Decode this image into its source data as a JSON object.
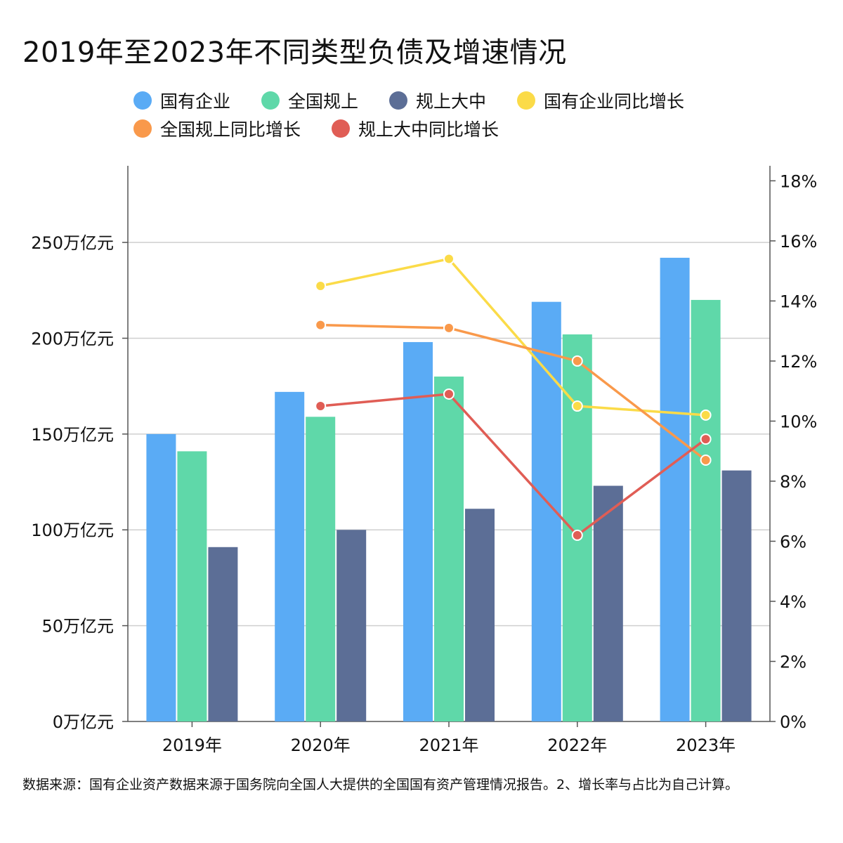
{
  "chart_data": {
    "type": "bar",
    "title": "2019年至2023年不同类型负债及增速情况",
    "categories": [
      "2019年",
      "2020年",
      "2021年",
      "2022年",
      "2023年"
    ],
    "series": [
      {
        "name": "国有企业",
        "kind": "bar",
        "axis": "left",
        "color": "#5AABF5",
        "values": [
          150,
          172,
          198,
          219,
          242
        ]
      },
      {
        "name": "全国规上",
        "kind": "bar",
        "axis": "left",
        "color": "#5FD8A9",
        "values": [
          141,
          159,
          180,
          202,
          220
        ]
      },
      {
        "name": "规上大中",
        "kind": "bar",
        "axis": "left",
        "color": "#5C6E96",
        "values": [
          91,
          100,
          111,
          123,
          131
        ]
      },
      {
        "name": "国有企业同比增长",
        "kind": "line",
        "axis": "right",
        "color": "#FBDB48",
        "values": [
          null,
          14.5,
          15.4,
          10.5,
          10.2
        ]
      },
      {
        "name": "全国规上同比增长",
        "kind": "line",
        "axis": "right",
        "color": "#F9994B",
        "values": [
          null,
          13.2,
          13.1,
          12.0,
          8.7
        ]
      },
      {
        "name": "规上大中同比增长",
        "kind": "line",
        "axis": "right",
        "color": "#E05D55",
        "values": [
          null,
          10.5,
          10.9,
          6.2,
          9.4
        ]
      }
    ],
    "y_left": {
      "min": 0,
      "max": 290,
      "ticks": [
        0,
        50,
        100,
        150,
        200,
        250
      ],
      "unit": "万亿元"
    },
    "y_right": {
      "min": 0,
      "max": 18.5,
      "ticks": [
        0,
        2,
        4,
        6,
        8,
        10,
        12,
        14,
        16,
        18
      ],
      "unit": "%"
    },
    "grid": true,
    "legend_position": "top"
  },
  "footnote": "数据来源：国有企业资产数据来源于国务院向全国人大提供的全国国有资产管理情况报告。2、增长率与占比为自己计算。"
}
